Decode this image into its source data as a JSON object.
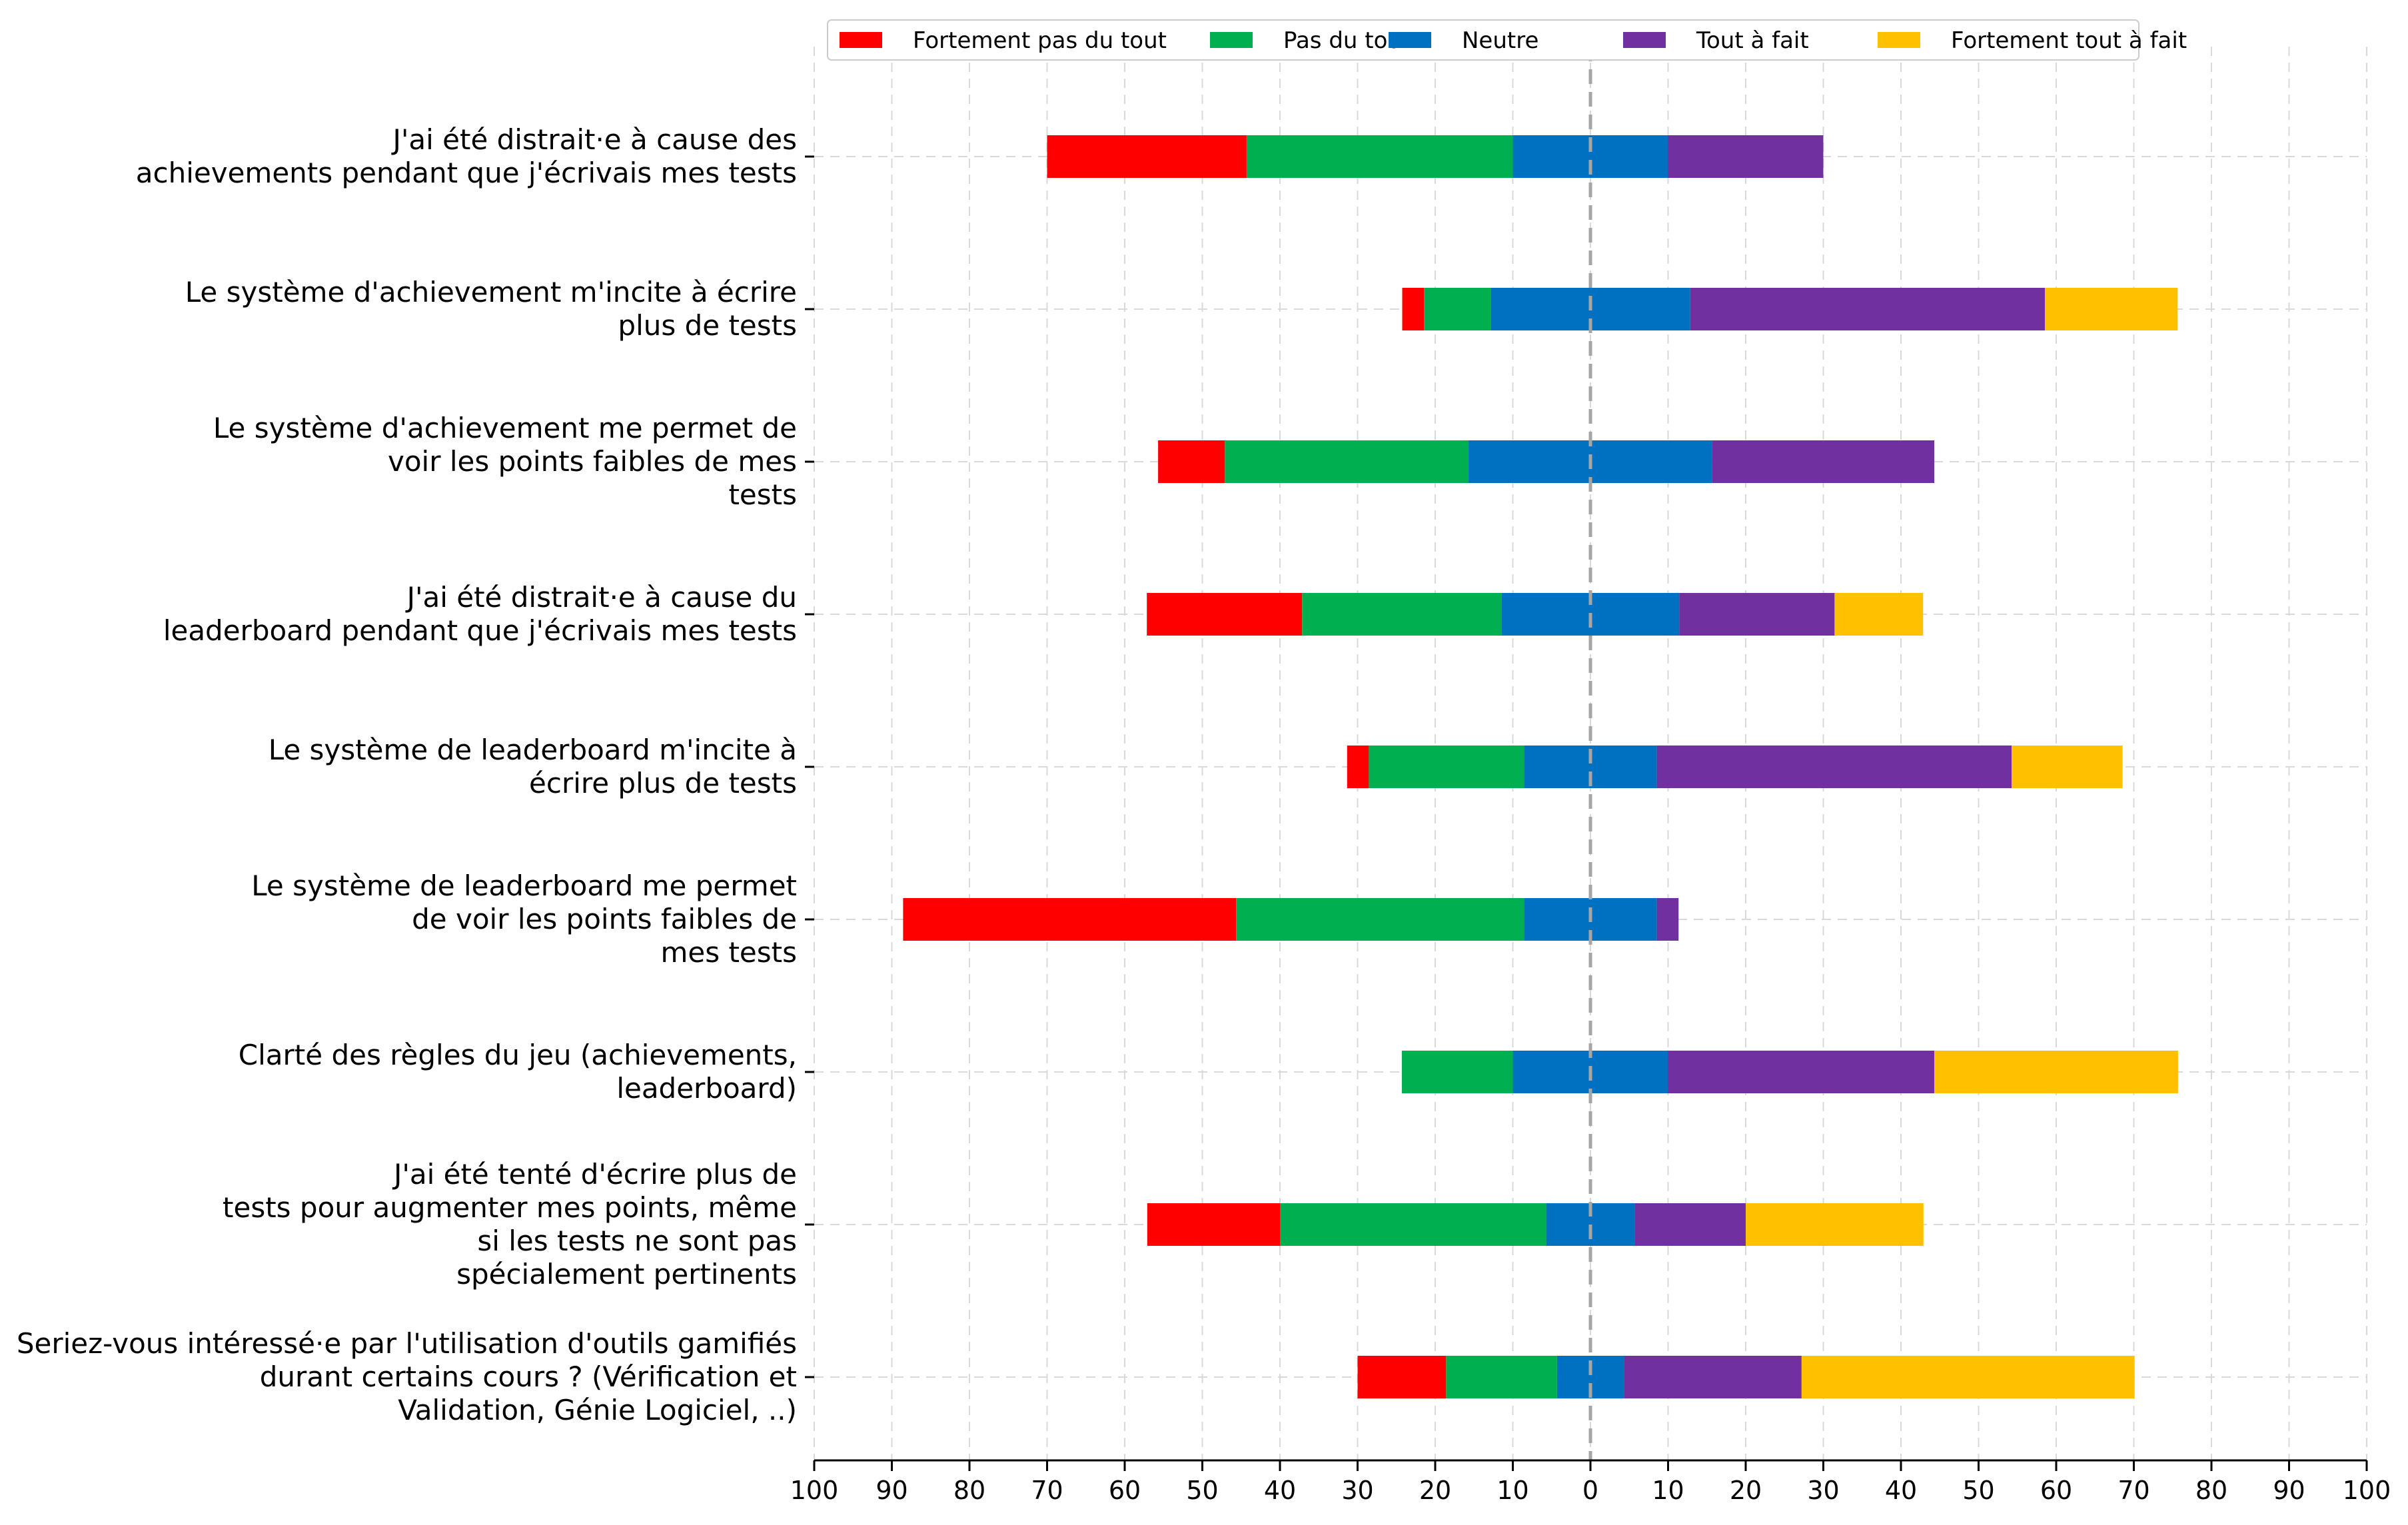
{
  "chart_data": {
    "type": "bar",
    "orientation": "horizontal-diverging",
    "center_value": 0,
    "xlim": [
      -100,
      100
    ],
    "xticks": [
      -100,
      -90,
      -80,
      -70,
      -60,
      -50,
      -40,
      -30,
      -20,
      -10,
      0,
      10,
      20,
      30,
      40,
      50,
      60,
      70,
      80,
      90,
      100
    ],
    "xtick_labels": [
      "100",
      "90",
      "80",
      "70",
      "60",
      "50",
      "40",
      "30",
      "20",
      "10",
      "0",
      "10",
      "20",
      "30",
      "40",
      "50",
      "60",
      "70",
      "80",
      "90",
      "100"
    ],
    "grid": true,
    "legend_position": "top",
    "categories": [
      [
        "J'ai été distrait·e à cause des",
        "achievements pendant que j'écrivais mes tests"
      ],
      [
        "Le système d'achievement m'incite à écrire",
        "plus de tests"
      ],
      [
        "Le système d'achievement me permet de",
        "voir les points faibles de mes",
        "tests"
      ],
      [
        "J'ai été distrait·e à cause du",
        "leaderboard pendant que j'écrivais mes tests"
      ],
      [
        "Le système de leaderboard m'incite à",
        "écrire plus de tests"
      ],
      [
        "Le système de leaderboard me permet",
        "de voir les points faibles de",
        "mes tests"
      ],
      [
        "Clarté des règles du jeu (achievements,",
        "leaderboard)"
      ],
      [
        "J'ai été tenté d'écrire plus de",
        "tests pour augmenter mes points, même",
        "si les tests ne sont pas",
        "spécialement pertinents"
      ],
      [
        "Seriez-vous intéressé·e par l'utilisation d'outils gamifiés",
        "durant certains cours ? (Vérification et",
        "Validation, Génie Logiciel, ..)"
      ]
    ],
    "series": [
      {
        "name": "Fortement pas du tout",
        "color": "#ff0000",
        "values": [
          25.7,
          2.8,
          8.6,
          20.0,
          2.8,
          42.9,
          0.0,
          17.1,
          11.4
        ]
      },
      {
        "name": "Pas du tout",
        "color": "#00b050",
        "values": [
          34.3,
          8.6,
          31.4,
          25.7,
          20.0,
          37.1,
          14.3,
          34.3,
          14.3
        ]
      },
      {
        "name": "Neutre",
        "color": "#0070c0",
        "values": [
          20.0,
          25.7,
          31.4,
          22.9,
          17.1,
          17.1,
          20.0,
          11.4,
          8.6
        ]
      },
      {
        "name": "Tout à fait",
        "color": "#7030a0",
        "values": [
          20.0,
          45.7,
          28.6,
          20.0,
          45.7,
          2.8,
          34.3,
          14.3,
          22.9
        ]
      },
      {
        "name": "Fortement tout à fait",
        "color": "#ffc000",
        "values": [
          0.0,
          17.1,
          0.0,
          11.4,
          14.3,
          0.0,
          31.4,
          22.9,
          42.9
        ]
      }
    ]
  }
}
